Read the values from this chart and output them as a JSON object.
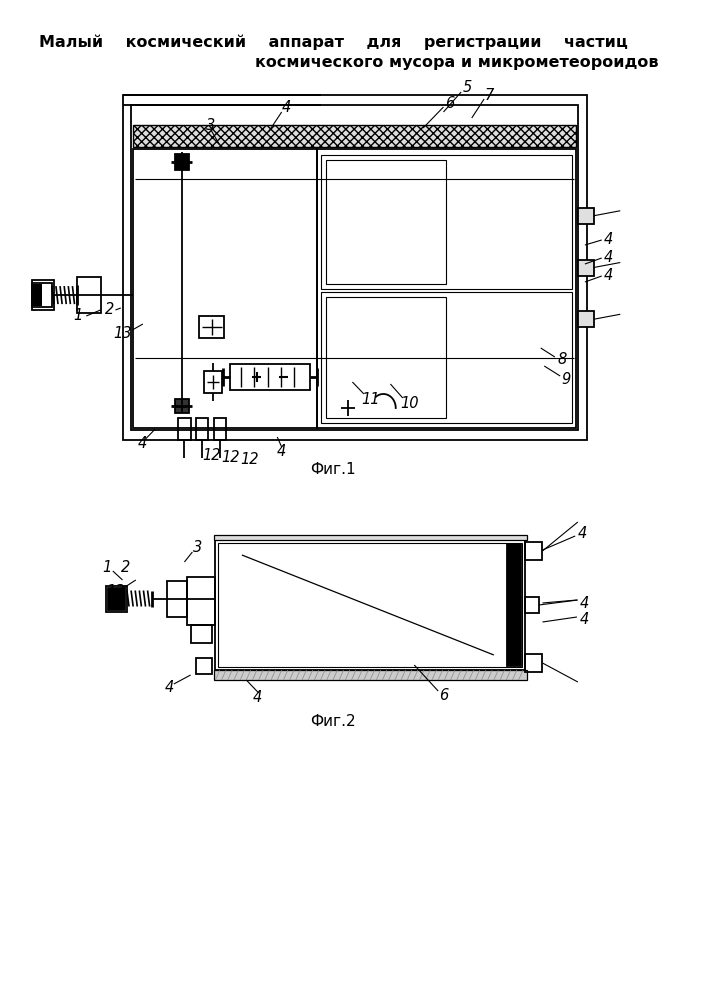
{
  "title_line1": "Малый    космический    аппарат    для    регистрации    частиц",
  "title_line2": "космического мусора и микрометеороидов",
  "fig1_label": "Фиг.1",
  "fig2_label": "Фиг.2",
  "bg_color": "#ffffff",
  "line_color": "#000000"
}
